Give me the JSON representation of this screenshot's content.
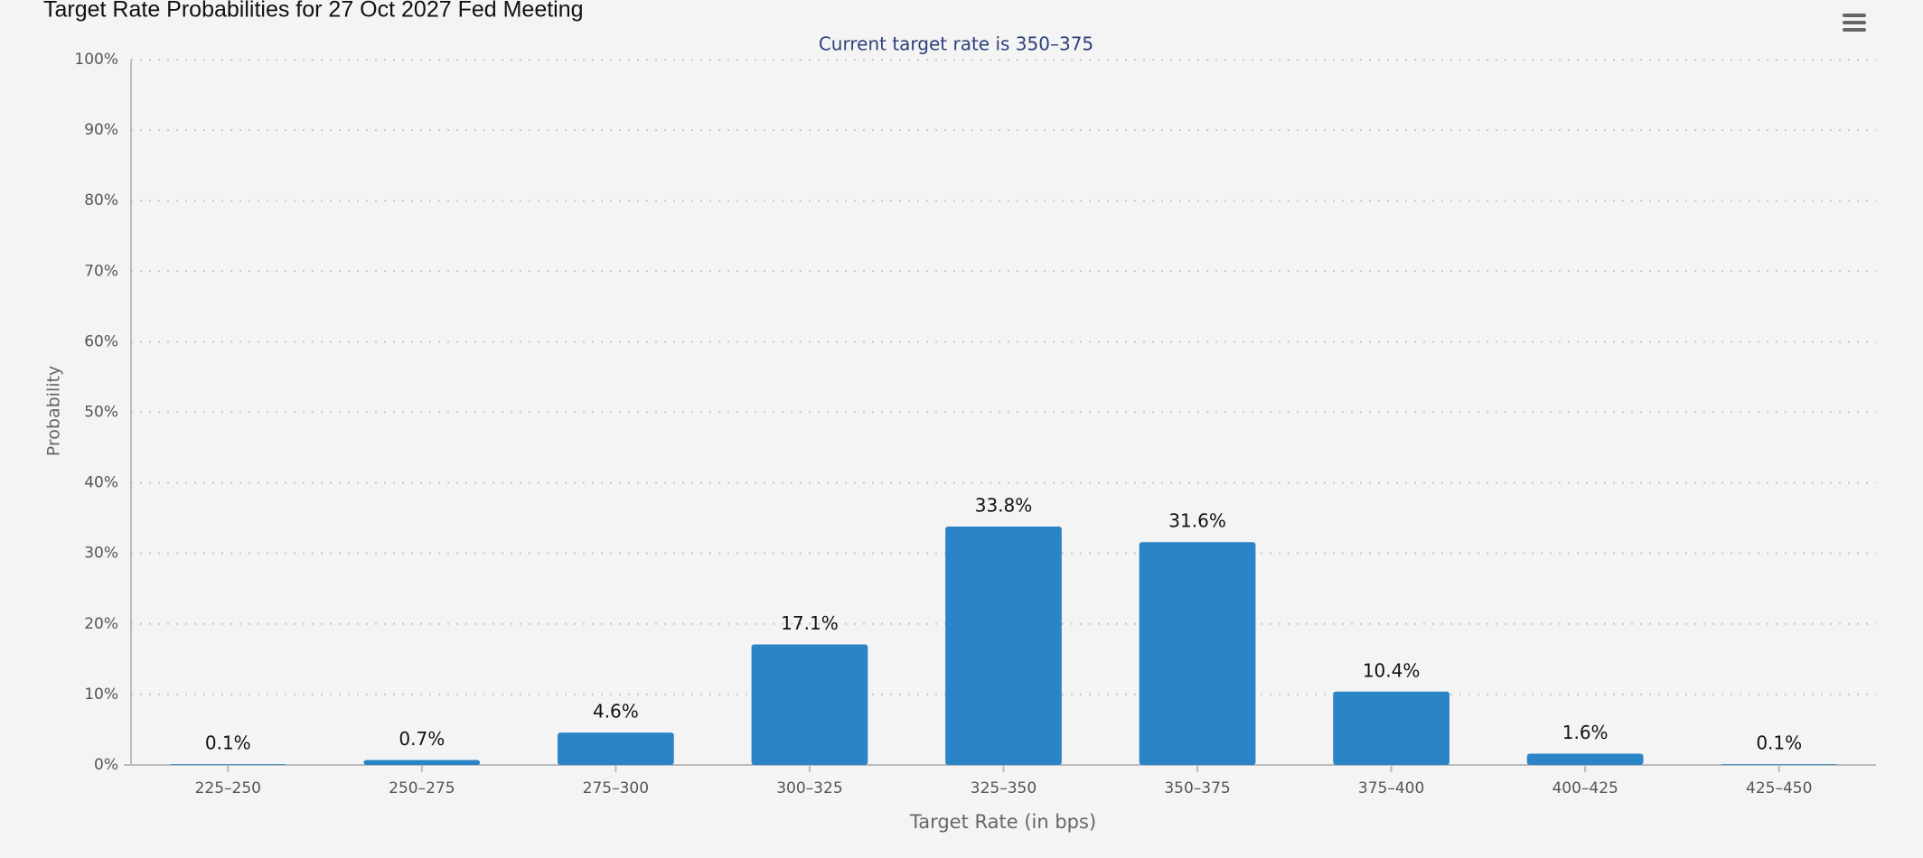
{
  "chart_data": {
    "type": "bar",
    "title": "Target Rate Probabilities for 27 Oct 2027 Fed Meeting",
    "subtitle": "Current target rate is 350–375",
    "x_label": "Target Rate (in bps)",
    "y_label": "Probability",
    "categories": [
      "225–250",
      "250–275",
      "275–300",
      "300–325",
      "325–350",
      "350–375",
      "375–400",
      "400–425",
      "425–450"
    ],
    "values": [
      0.1,
      0.7,
      4.6,
      17.1,
      33.8,
      31.6,
      10.4,
      1.6,
      0.1
    ],
    "value_labels": [
      "0.1%",
      "0.7%",
      "4.6%",
      "17.1%",
      "33.8%",
      "31.6%",
      "10.4%",
      "1.6%",
      "0.1%"
    ],
    "color": "#2b84c6",
    "ylim": [
      0,
      100
    ],
    "yticks": [
      {
        "value": 0,
        "label": "0%"
      },
      {
        "value": 10,
        "label": "10%"
      },
      {
        "value": 20,
        "label": "20%"
      },
      {
        "value": 30,
        "label": "30%"
      },
      {
        "value": 40,
        "label": "40%"
      },
      {
        "value": 50,
        "label": "50%"
      },
      {
        "value": 60,
        "label": "60%"
      },
      {
        "value": 70,
        "label": "70%"
      },
      {
        "value": 80,
        "label": "80%"
      },
      {
        "value": 90,
        "label": "90%"
      },
      {
        "value": 100,
        "label": "100%"
      }
    ],
    "grid": true
  }
}
